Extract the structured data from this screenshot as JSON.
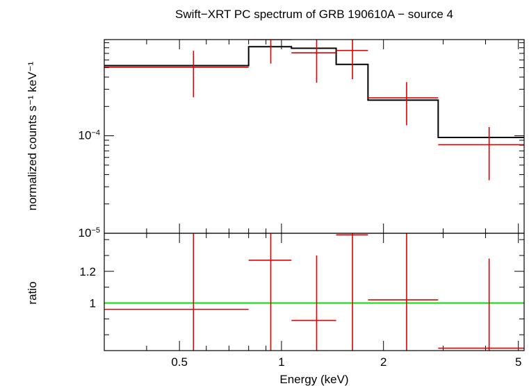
{
  "chart_data": {
    "title": "Swift−XRT PC spectrum of GRB 190610A − source 4",
    "xlabel": "Energy (keV)",
    "x_scale": "log",
    "xlim": [
      0.3,
      5.2
    ],
    "x_ticks": [
      {
        "value": 0.5,
        "label": "0.5"
      },
      {
        "value": 1,
        "label": "1"
      },
      {
        "value": 2,
        "label": "2"
      },
      {
        "value": 5,
        "label": "5"
      }
    ],
    "colors": {
      "data": "#e00000",
      "model": "#000000",
      "unity": "#00e000",
      "frame": "#000000"
    },
    "panels": [
      {
        "type": "line",
        "ylabel": "normalized counts s⁻¹ keV⁻¹",
        "y_scale": "log",
        "ylim": [
          1e-05,
          0.00097
        ],
        "y_ticks": [
          {
            "value": 0.0001,
            "base": "10",
            "exp": "−4"
          },
          {
            "value": 1e-05,
            "base": "10",
            "exp": "−5"
          }
        ],
        "data": [
          {
            "x": 0.55,
            "xlo": 0.3,
            "xhi": 0.8,
            "y": 0.000505,
            "ylo": 0.000248,
            "yhi": 0.000745
          },
          {
            "x": 0.93,
            "xlo": 0.8,
            "xhi": 1.07,
            "y": 0.00097,
            "ylo": 0.00055,
            "yhi": 0.00097
          },
          {
            "x": 1.27,
            "xlo": 1.07,
            "xhi": 1.45,
            "y": 0.00071,
            "ylo": 0.00035,
            "yhi": 0.00097
          },
          {
            "x": 1.62,
            "xlo": 1.45,
            "xhi": 1.8,
            "y": 0.00075,
            "ylo": 0.00038,
            "yhi": 0.00097
          },
          {
            "x": 2.34,
            "xlo": 1.8,
            "xhi": 2.9,
            "y": 0.000245,
            "ylo": 0.000128,
            "yhi": 0.000355
          },
          {
            "x": 4.1,
            "xlo": 2.9,
            "xhi": 5.2,
            "y": 8.1e-05,
            "ylo": 3.5e-05,
            "yhi": 0.000123
          }
        ],
        "model": [
          {
            "xlo": 0.3,
            "xhi": 0.8,
            "y": 0.000525
          },
          {
            "xlo": 0.8,
            "xhi": 1.07,
            "y": 0.00082
          },
          {
            "xlo": 1.07,
            "xhi": 1.45,
            "y": 0.00079
          },
          {
            "xlo": 1.45,
            "xhi": 1.8,
            "y": 0.00054
          },
          {
            "xlo": 1.8,
            "xhi": 2.9,
            "y": 0.000232
          },
          {
            "xlo": 2.9,
            "xhi": 5.2,
            "y": 9.6e-05
          }
        ]
      },
      {
        "type": "scatter",
        "ylabel": "ratio",
        "y_scale": "linear",
        "ylim": [
          0.7,
          1.44
        ],
        "y_ticks": [
          {
            "value": 1,
            "label": "1"
          },
          {
            "value": 1.2,
            "label": "1.2"
          }
        ],
        "reference_y": 1,
        "data": [
          {
            "x": 0.55,
            "xlo": 0.3,
            "xhi": 0.8,
            "y": 0.96,
            "ylo": 0.7,
            "yhi": 1.44
          },
          {
            "x": 0.93,
            "xlo": 0.8,
            "xhi": 1.07,
            "y": 1.27,
            "ylo": 0.7,
            "yhi": 1.44
          },
          {
            "x": 1.27,
            "xlo": 1.07,
            "xhi": 1.45,
            "y": 0.89,
            "ylo": 0.7,
            "yhi": 1.3
          },
          {
            "x": 1.62,
            "xlo": 1.45,
            "xhi": 1.8,
            "y": 1.43,
            "ylo": 0.7,
            "yhi": 1.44
          },
          {
            "x": 2.34,
            "xlo": 1.8,
            "xhi": 2.9,
            "y": 1.02,
            "ylo": 0.7,
            "yhi": 1.44
          },
          {
            "x": 4.1,
            "xlo": 2.9,
            "xhi": 5.2,
            "y": 0.715,
            "ylo": 0.7,
            "yhi": 1.28
          }
        ]
      }
    ]
  }
}
